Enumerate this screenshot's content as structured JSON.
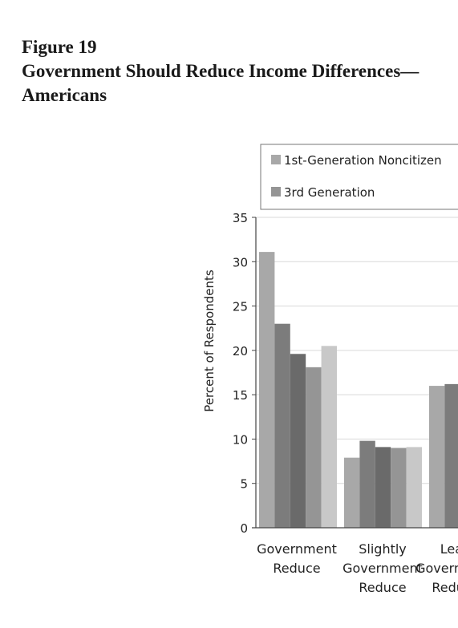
{
  "figure": {
    "label": "Figure 19",
    "title_line1": "Government Should Reduce Income Differences—",
    "title_line2": "Americans"
  },
  "chart_data": {
    "type": "bar",
    "ylabel": "Percent of Respondents",
    "xlabel": "",
    "ylim": [
      0,
      35
    ],
    "yticks": [
      0,
      5,
      10,
      15,
      20,
      25,
      30,
      35
    ],
    "grid": true,
    "legend_position": "top-right",
    "categories": [
      [
        "Government",
        "Reduce"
      ],
      [
        "Slightly",
        "Government",
        "Reduce"
      ],
      [
        "Lean",
        "Government",
        "Reduce"
      ]
    ],
    "series": [
      {
        "name": "1st-Generation Noncitizen",
        "color": "#a8a8a8",
        "values": [
          31.1,
          7.9,
          16.0
        ]
      },
      {
        "name": "",
        "color": "#7c7c7c",
        "values": [
          23.0,
          9.8,
          16.2
        ]
      },
      {
        "name": "",
        "color": "#6a6a6a",
        "values": [
          19.6,
          9.1,
          null
        ]
      },
      {
        "name": "3rd Generation",
        "color": "#959595",
        "values": [
          18.1,
          9.0,
          null
        ]
      },
      {
        "name": "",
        "color": "#c8c8c8",
        "values": [
          20.5,
          9.1,
          null
        ]
      }
    ]
  }
}
